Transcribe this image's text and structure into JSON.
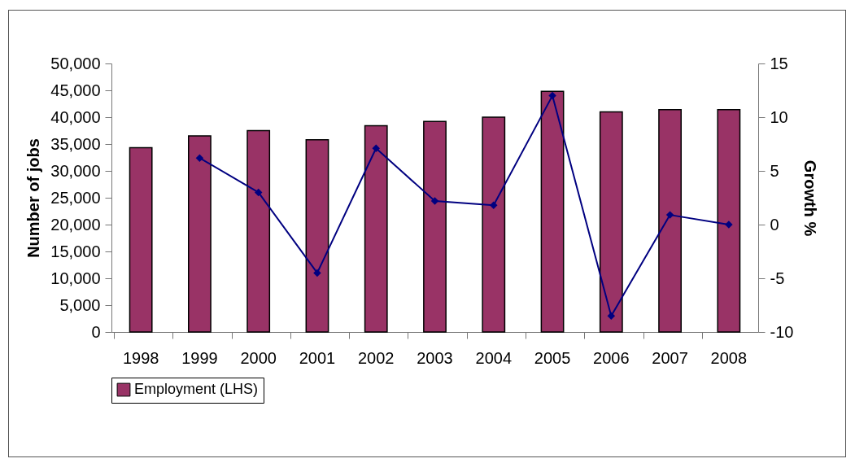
{
  "chart_data": {
    "type": "bar",
    "categories": [
      "1998",
      "1999",
      "2000",
      "2001",
      "2002",
      "2003",
      "2004",
      "2005",
      "2006",
      "2007",
      "2008"
    ],
    "series": [
      {
        "name": "Employment (LHS)",
        "color": "#993366",
        "values": [
          34300,
          36500,
          37500,
          35800,
          38400,
          39200,
          40000,
          44800,
          41000,
          41400,
          41400
        ]
      },
      {
        "type": "line",
        "axis": "y2",
        "color": "#000080",
        "values": [
          null,
          6.2,
          3.0,
          -4.5,
          7.1,
          2.2,
          1.8,
          12.0,
          -8.5,
          0.9,
          0.0
        ]
      }
    ],
    "ylabel": "Number of jobs",
    "y2label": "Growth %",
    "ylim": [
      0,
      50000
    ],
    "yticks": [
      0,
      {
        "value": 5000,
        "label": "5,000"
      },
      {
        "value": 10000,
        "label": "10,000"
      },
      {
        "value": 15000,
        "label": "15,000"
      },
      {
        "value": 20000,
        "label": "20,000"
      },
      {
        "value": 25000,
        "label": "25,000"
      },
      {
        "value": 30000,
        "label": "30,000"
      },
      {
        "value": 35000,
        "label": "35,000"
      },
      {
        "value": 40000,
        "label": "40,000"
      },
      {
        "value": 45000,
        "label": "45,000"
      },
      {
        "value": 50000,
        "label": "50,000"
      }
    ],
    "y2lim": [
      -10,
      15
    ],
    "y2ticks": [
      -10,
      -5,
      0,
      5,
      10,
      15
    ],
    "marker": "diamond",
    "legend": "bottom",
    "grid": false
  }
}
